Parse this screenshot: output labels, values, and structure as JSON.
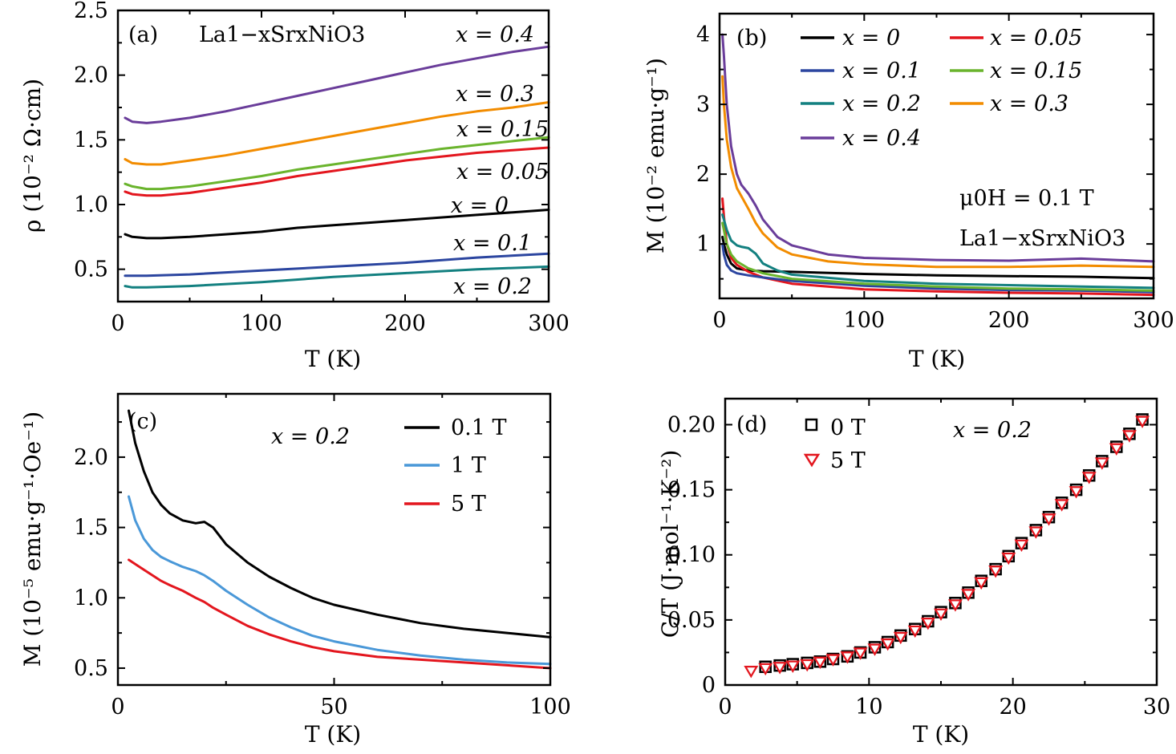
{
  "chart_data": [
    {
      "panel_label": "(a)",
      "type": "line",
      "xlabel": "T (K)",
      "ylabel": "ρ (10⁻² Ω·cm)",
      "xlim": [
        0,
        300
      ],
      "ylim": [
        0.25,
        2.5
      ],
      "xticks": [
        "0",
        "100",
        "200",
        "300"
      ],
      "yticks": [
        "0.5",
        "1.0",
        "1.5",
        "2.0",
        "2.5"
      ],
      "xtick_values": [
        0,
        100,
        200,
        300
      ],
      "ytick_values": [
        0.5,
        1.0,
        1.5,
        2.0,
        2.5
      ],
      "annotation": "La1−xSrxNiO3",
      "series": [
        {
          "name": "x = 0.4",
          "color": "#6a3d9a",
          "x": [
            5,
            10,
            20,
            30,
            50,
            75,
            100,
            125,
            150,
            175,
            200,
            225,
            250,
            275,
            300
          ],
          "y": [
            1.67,
            1.64,
            1.63,
            1.64,
            1.67,
            1.72,
            1.78,
            1.84,
            1.9,
            1.96,
            2.02,
            2.08,
            2.13,
            2.18,
            2.22
          ]
        },
        {
          "name": "x = 0.3",
          "color": "#f28c00",
          "x": [
            5,
            10,
            20,
            30,
            50,
            75,
            100,
            125,
            150,
            175,
            200,
            225,
            250,
            275,
            300
          ],
          "y": [
            1.35,
            1.32,
            1.31,
            1.31,
            1.34,
            1.38,
            1.43,
            1.48,
            1.53,
            1.58,
            1.63,
            1.68,
            1.72,
            1.75,
            1.79
          ]
        },
        {
          "name": "x = 0.15",
          "color": "#6ab42d",
          "x": [
            5,
            10,
            20,
            30,
            50,
            75,
            100,
            125,
            150,
            175,
            200,
            225,
            250,
            275,
            300
          ],
          "y": [
            1.16,
            1.14,
            1.12,
            1.12,
            1.14,
            1.18,
            1.22,
            1.27,
            1.31,
            1.35,
            1.39,
            1.43,
            1.46,
            1.49,
            1.52
          ]
        },
        {
          "name": "x = 0.05",
          "color": "#e3161e",
          "x": [
            5,
            10,
            20,
            30,
            50,
            75,
            100,
            125,
            150,
            175,
            200,
            225,
            250,
            275,
            300
          ],
          "y": [
            1.1,
            1.08,
            1.07,
            1.07,
            1.09,
            1.13,
            1.17,
            1.22,
            1.26,
            1.3,
            1.34,
            1.37,
            1.4,
            1.42,
            1.44
          ]
        },
        {
          "name": "x = 0",
          "color": "#000000",
          "x": [
            5,
            10,
            20,
            30,
            50,
            75,
            100,
            125,
            150,
            175,
            200,
            225,
            250,
            275,
            300
          ],
          "y": [
            0.77,
            0.75,
            0.74,
            0.74,
            0.75,
            0.77,
            0.79,
            0.82,
            0.84,
            0.86,
            0.88,
            0.9,
            0.92,
            0.94,
            0.96
          ]
        },
        {
          "name": "x = 0.1",
          "color": "#2c46a0",
          "x": [
            5,
            10,
            20,
            50,
            100,
            150,
            200,
            250,
            300
          ],
          "y": [
            0.45,
            0.45,
            0.45,
            0.46,
            0.49,
            0.52,
            0.55,
            0.59,
            0.62
          ]
        },
        {
          "name": "x = 0.2",
          "color": "#138080",
          "x": [
            5,
            10,
            20,
            50,
            100,
            150,
            200,
            250,
            300
          ],
          "y": [
            0.37,
            0.36,
            0.36,
            0.37,
            0.4,
            0.44,
            0.47,
            0.5,
            0.52
          ]
        }
      ]
    },
    {
      "panel_label": "(b)",
      "type": "line",
      "xlabel": "T (K)",
      "ylabel": "M (10⁻² emu·g⁻¹)",
      "xlim": [
        0,
        300
      ],
      "ylim": [
        0.22,
        4.3
      ],
      "xticks": [
        "0",
        "100",
        "200",
        "300"
      ],
      "yticks": [
        "1",
        "2",
        "3",
        "4"
      ],
      "xtick_values": [
        0,
        100,
        200,
        300
      ],
      "ytick_values": [
        1,
        2,
        3,
        4
      ],
      "annotations": [
        "μ0H = 0.1 T",
        "La1−xSrxNiO3"
      ],
      "legend_position": "top",
      "series": [
        {
          "name": "x = 0",
          "color": "#000000",
          "x": [
            2,
            3,
            5,
            8,
            12,
            20,
            30,
            50,
            100,
            150,
            200,
            250,
            300
          ],
          "y": [
            1.1,
            1.0,
            0.85,
            0.72,
            0.65,
            0.62,
            0.61,
            0.6,
            0.57,
            0.55,
            0.54,
            0.53,
            0.51
          ]
        },
        {
          "name": "x = 0.05",
          "color": "#e3161e",
          "x": [
            2,
            3,
            5,
            8,
            12,
            20,
            30,
            50,
            100,
            150,
            200,
            250,
            300
          ],
          "y": [
            1.65,
            1.4,
            1.0,
            0.8,
            0.7,
            0.6,
            0.52,
            0.43,
            0.35,
            0.32,
            0.3,
            0.29,
            0.27
          ]
        },
        {
          "name": "x = 0.1",
          "color": "#2c46a0",
          "x": [
            2,
            3,
            5,
            8,
            12,
            20,
            30,
            50,
            100,
            150,
            200,
            250,
            300
          ],
          "y": [
            1.0,
            0.85,
            0.7,
            0.62,
            0.58,
            0.55,
            0.52,
            0.47,
            0.4,
            0.36,
            0.34,
            0.33,
            0.31
          ]
        },
        {
          "name": "x = 0.15",
          "color": "#6ab42d",
          "x": [
            2,
            3,
            5,
            8,
            12,
            20,
            30,
            50,
            100,
            150,
            200,
            250,
            300
          ],
          "y": [
            1.3,
            1.2,
            1.0,
            0.85,
            0.75,
            0.65,
            0.58,
            0.5,
            0.43,
            0.39,
            0.36,
            0.35,
            0.33
          ]
        },
        {
          "name": "x = 0.2",
          "color": "#138080",
          "x": [
            2,
            3,
            5,
            8,
            12,
            15,
            20,
            25,
            30,
            40,
            50,
            100,
            150,
            200,
            250,
            300
          ],
          "y": [
            1.42,
            1.35,
            1.2,
            1.05,
            0.98,
            0.96,
            0.94,
            0.86,
            0.72,
            0.62,
            0.56,
            0.47,
            0.43,
            0.41,
            0.39,
            0.37
          ]
        },
        {
          "name": "x = 0.3",
          "color": "#f28c00",
          "x": [
            2,
            3,
            5,
            8,
            12,
            20,
            25,
            30,
            40,
            50,
            75,
            100,
            150,
            200,
            250,
            300
          ],
          "y": [
            3.4,
            3.0,
            2.5,
            2.1,
            1.8,
            1.5,
            1.3,
            1.15,
            0.95,
            0.85,
            0.75,
            0.71,
            0.67,
            0.67,
            0.69,
            0.67
          ]
        },
        {
          "name": "x = 0.4",
          "color": "#6a3d9a",
          "x": [
            2,
            3,
            5,
            8,
            12,
            15,
            20,
            25,
            30,
            40,
            50,
            75,
            100,
            150,
            200,
            250,
            300
          ],
          "y": [
            4.0,
            3.7,
            3.0,
            2.4,
            2.0,
            1.85,
            1.72,
            1.55,
            1.35,
            1.1,
            0.98,
            0.85,
            0.8,
            0.77,
            0.76,
            0.79,
            0.75
          ]
        }
      ]
    },
    {
      "panel_label": "(c)",
      "type": "line",
      "xlabel": "T (K)",
      "ylabel": "M (10⁻⁵ emu·g⁻¹·Oe⁻¹)",
      "xlim": [
        0,
        100
      ],
      "ylim": [
        0.38,
        2.45
      ],
      "xticks": [
        "0",
        "50",
        "100"
      ],
      "yticks": [
        "0.5",
        "1.0",
        "1.5",
        "2.0"
      ],
      "xtick_values": [
        0,
        50,
        100
      ],
      "ytick_values": [
        0.5,
        1.0,
        1.5,
        2.0
      ],
      "annotation": "x = 0.2",
      "legend_position": "top-right",
      "series": [
        {
          "name": "0.1 T",
          "color": "#000000",
          "x": [
            2.5,
            4,
            6,
            8,
            10,
            12,
            15,
            18,
            20,
            22,
            25,
            30,
            35,
            40,
            45,
            50,
            60,
            70,
            80,
            90,
            100
          ],
          "y": [
            2.33,
            2.1,
            1.9,
            1.75,
            1.66,
            1.6,
            1.55,
            1.53,
            1.54,
            1.5,
            1.38,
            1.25,
            1.15,
            1.07,
            1.0,
            0.95,
            0.88,
            0.82,
            0.78,
            0.75,
            0.72
          ]
        },
        {
          "name": "1 T",
          "color": "#4a98d8",
          "x": [
            2.5,
            4,
            6,
            8,
            10,
            12,
            15,
            18,
            20,
            22,
            25,
            30,
            35,
            40,
            45,
            50,
            60,
            70,
            80,
            90,
            100
          ],
          "y": [
            1.72,
            1.55,
            1.42,
            1.34,
            1.29,
            1.26,
            1.22,
            1.19,
            1.16,
            1.12,
            1.05,
            0.95,
            0.86,
            0.79,
            0.73,
            0.69,
            0.63,
            0.59,
            0.56,
            0.54,
            0.53
          ]
        },
        {
          "name": "5 T",
          "color": "#e3161e",
          "x": [
            2.5,
            4,
            6,
            8,
            10,
            12,
            15,
            18,
            20,
            22,
            25,
            30,
            35,
            40,
            45,
            50,
            60,
            70,
            80,
            90,
            100
          ],
          "y": [
            1.27,
            1.24,
            1.2,
            1.16,
            1.12,
            1.09,
            1.05,
            1.0,
            0.97,
            0.93,
            0.88,
            0.8,
            0.74,
            0.69,
            0.65,
            0.62,
            0.58,
            0.56,
            0.54,
            0.52,
            0.5
          ]
        }
      ]
    },
    {
      "panel_label": "(d)",
      "type": "scatter",
      "xlabel": "T (K)",
      "ylabel": "C/T (J·mol⁻¹·K⁻²)",
      "xlim": [
        0,
        30
      ],
      "ylim": [
        0,
        0.22
      ],
      "xticks": [
        "0",
        "10",
        "20",
        "30"
      ],
      "yticks": [
        "0",
        "0.05",
        "0.10",
        "0.15",
        "0.20"
      ],
      "xtick_values": [
        0,
        10,
        20,
        30
      ],
      "ytick_values": [
        0,
        0.05,
        0.1,
        0.15,
        0.2
      ],
      "annotation": "x = 0.2",
      "legend_position": "top-left",
      "series": [
        {
          "name": "0 T",
          "color": "#000000",
          "marker": "square",
          "x": [
            2.8,
            3.8,
            4.7,
            5.7,
            6.6,
            7.5,
            8.5,
            9.4,
            10.4,
            11.3,
            12.2,
            13.2,
            14.1,
            15.0,
            16.0,
            16.9,
            17.8,
            18.8,
            19.7,
            20.6,
            21.6,
            22.5,
            23.4,
            24.4,
            25.3,
            26.2,
            27.2,
            28.1,
            29.0
          ],
          "y": [
            0.014,
            0.015,
            0.016,
            0.017,
            0.018,
            0.02,
            0.022,
            0.025,
            0.029,
            0.033,
            0.038,
            0.043,
            0.049,
            0.056,
            0.063,
            0.071,
            0.08,
            0.089,
            0.099,
            0.109,
            0.119,
            0.129,
            0.14,
            0.15,
            0.161,
            0.172,
            0.183,
            0.193,
            0.204
          ]
        },
        {
          "name": "5 T",
          "color": "#e3161e",
          "marker": "triangle-down",
          "x": [
            1.8,
            2.8,
            3.8,
            4.7,
            5.7,
            6.6,
            7.5,
            8.5,
            9.4,
            10.4,
            11.3,
            12.2,
            13.2,
            14.1,
            15.0,
            16.0,
            16.9,
            17.8,
            18.8,
            19.7,
            20.6,
            21.6,
            22.5,
            23.4,
            24.4,
            25.3,
            26.2,
            27.2,
            28.1,
            29.0
          ],
          "y": [
            0.011,
            0.013,
            0.014,
            0.015,
            0.016,
            0.018,
            0.02,
            0.022,
            0.025,
            0.028,
            0.032,
            0.037,
            0.042,
            0.048,
            0.055,
            0.062,
            0.07,
            0.079,
            0.088,
            0.098,
            0.108,
            0.118,
            0.128,
            0.139,
            0.149,
            0.16,
            0.171,
            0.182,
            0.192,
            0.203
          ]
        }
      ]
    }
  ]
}
